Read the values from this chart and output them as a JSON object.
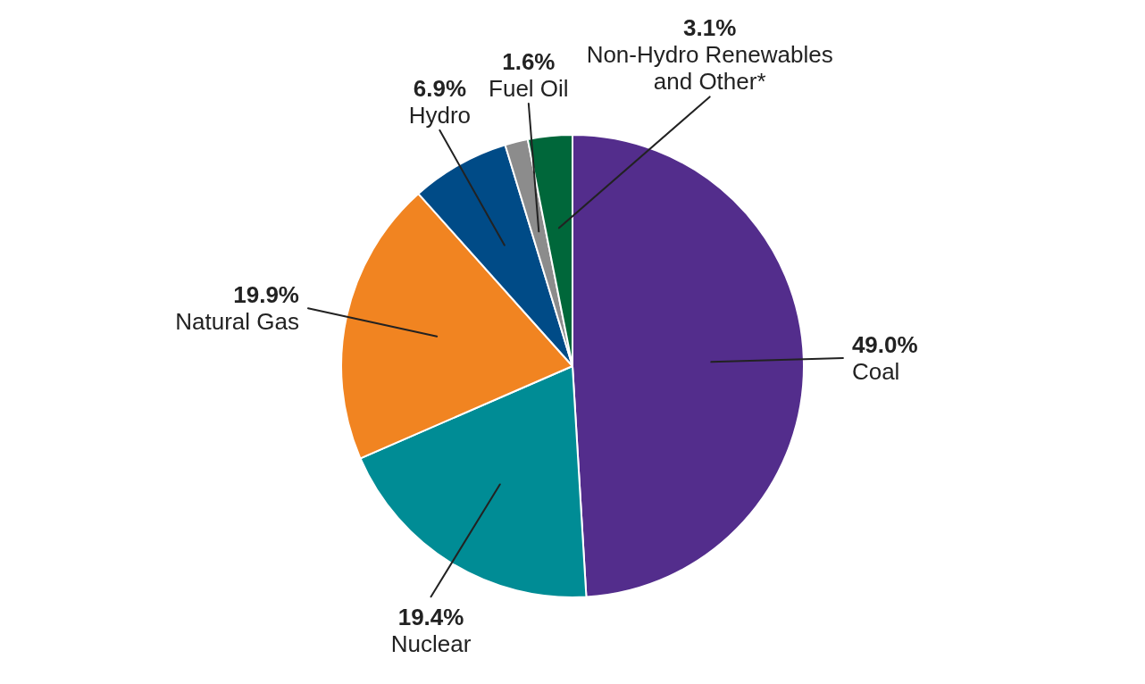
{
  "chart_data": {
    "type": "pie",
    "categories": [
      "Coal",
      "Nuclear",
      "Natural Gas",
      "Hydro",
      "Fuel Oil",
      "Non-Hydro Renewables and Other*"
    ],
    "values": [
      49.0,
      19.4,
      19.9,
      6.9,
      1.6,
      3.1
    ],
    "colors": [
      "#532d8c",
      "#008c95",
      "#f18421",
      "#004b87",
      "#8c8c8c",
      "#00673a"
    ],
    "value_labels": [
      "49.0%",
      "19.4%",
      "19.9%",
      "6.9%",
      "1.6%",
      "3.1%"
    ],
    "legend": false
  }
}
